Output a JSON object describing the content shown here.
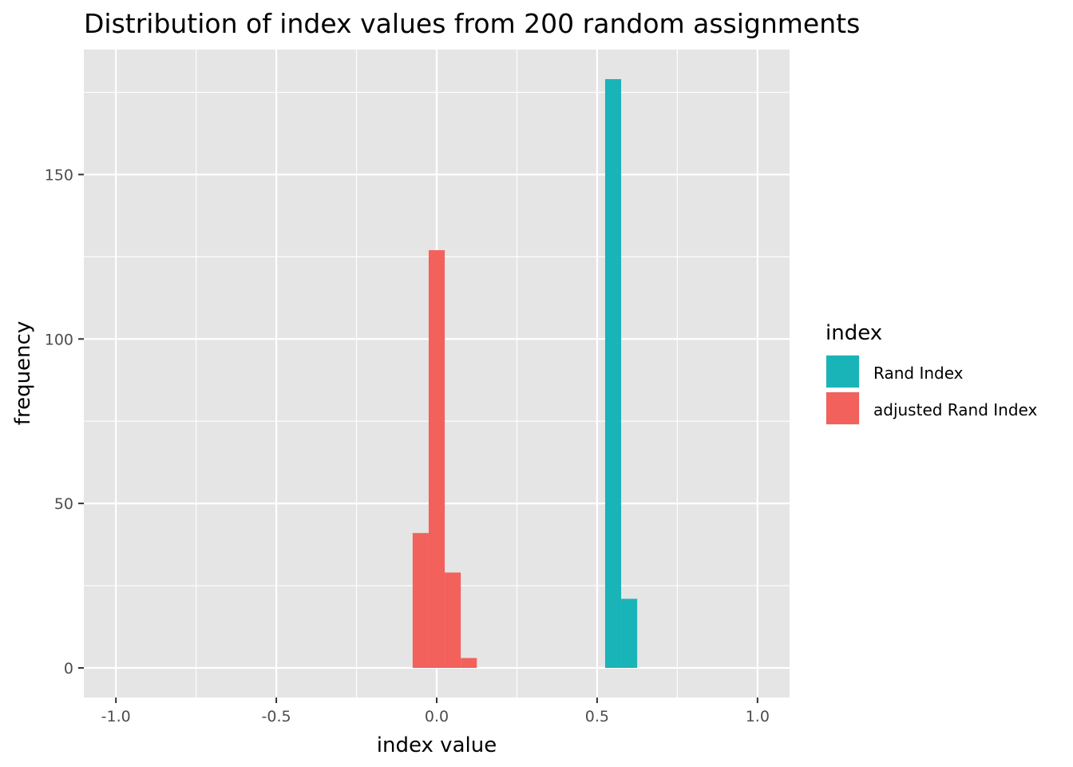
{
  "chart_data": {
    "type": "bar",
    "title": "Distribution of index values from 200 random assignments",
    "xlabel": "index value",
    "ylabel": "frequency",
    "xlim": [
      -1.1,
      1.1
    ],
    "ylim": [
      -9,
      188
    ],
    "x_ticks": [
      -1.0,
      -0.5,
      0.0,
      0.5,
      1.0
    ],
    "x_tick_labels": [
      "-1.0",
      "-0.5",
      "0.0",
      "0.5",
      "1.0"
    ],
    "y_ticks": [
      0,
      50,
      100,
      150
    ],
    "y_tick_labels": [
      "0",
      "50",
      "100",
      "150"
    ],
    "grid": true,
    "bin_width": 0.05,
    "legend": {
      "title": "index",
      "position": "right",
      "entries": [
        {
          "label": "Rand Index",
          "color": "#19b4b8"
        },
        {
          "label": "adjusted Rand Index",
          "color": "#f2615c"
        }
      ]
    },
    "series": [
      {
        "name": "Rand Index",
        "color": "#19b4b8",
        "bins": [
          {
            "x0": 0.525,
            "x1": 0.575,
            "count": 179
          },
          {
            "x0": 0.575,
            "x1": 0.625,
            "count": 21
          }
        ]
      },
      {
        "name": "adjusted Rand Index",
        "color": "#f2615c",
        "bins": [
          {
            "x0": -0.075,
            "x1": -0.025,
            "count": 41
          },
          {
            "x0": -0.025,
            "x1": 0.025,
            "count": 127
          },
          {
            "x0": 0.025,
            "x1": 0.075,
            "count": 29
          },
          {
            "x0": 0.075,
            "x1": 0.125,
            "count": 3
          }
        ]
      }
    ]
  }
}
